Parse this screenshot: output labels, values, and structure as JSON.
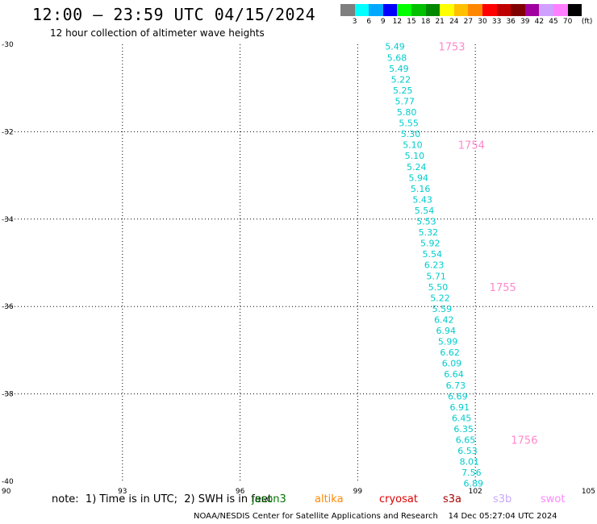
{
  "title": "12:00 — 23:59 UTC 04/15/2024",
  "subtitle": "12 hour collection of altimeter wave heights",
  "colorbar": {
    "unit": "(ft)",
    "labels": [
      "3",
      "6",
      "9",
      "12",
      "15",
      "18",
      "21",
      "24",
      "27",
      "30",
      "33",
      "36",
      "39",
      "42",
      "45",
      "70"
    ],
    "colors": [
      "#7f7f7f",
      "#00ffff",
      "#00a8ff",
      "#0000ff",
      "#00ff00",
      "#00c000",
      "#008800",
      "#ffff00",
      "#ffc000",
      "#ff8800",
      "#ff0000",
      "#c00000",
      "#800000",
      "#a000a0",
      "#d0a0ff",
      "#ff80ff",
      "#000000"
    ]
  },
  "note": "note:  1) Time is in UTC;  2) SWH is in feet",
  "legend": [
    {
      "name": "jason3",
      "color": "#007700"
    },
    {
      "name": "altika",
      "color": "#ff8800"
    },
    {
      "name": "cryosat",
      "color": "#dd0000"
    },
    {
      "name": "s3a",
      "color": "#aa0000"
    },
    {
      "name": "s3b",
      "color": "#c8a8ff"
    },
    {
      "name": "swot",
      "color": "#ff88ff"
    }
  ],
  "footer": "NOAA/NESDIS Center for Satellite Applications and Research    14 Dec 05:27:04 UTC 2024",
  "chart_data": {
    "type": "scatter",
    "title": "12:00 — 23:59 UTC 04/15/2024",
    "xlim": [
      90,
      105
    ],
    "ylim": [
      -40,
      -30
    ],
    "x_ticks": [
      "90",
      "93",
      "96",
      "99",
      "102",
      "105"
    ],
    "y_ticks": [
      "-30",
      "-32",
      "-34",
      "-36",
      "-38",
      "-40"
    ],
    "grid": true,
    "series": [
      {
        "name": "jason3",
        "color": "#00cccc",
        "points": [
          {
            "x": 99.95,
            "y": -30.05,
            "label": "5.49"
          },
          {
            "x": 100.0,
            "y": -30.3,
            "label": "5.68"
          },
          {
            "x": 100.05,
            "y": -30.55,
            "label": "5.49"
          },
          {
            "x": 100.1,
            "y": -30.8,
            "label": "5.22"
          },
          {
            "x": 100.15,
            "y": -31.05,
            "label": "5.25"
          },
          {
            "x": 100.2,
            "y": -31.3,
            "label": "5.77"
          },
          {
            "x": 100.25,
            "y": -31.55,
            "label": "5.80"
          },
          {
            "x": 100.3,
            "y": -31.8,
            "label": "5.55"
          },
          {
            "x": 100.35,
            "y": -32.05,
            "label": "5.30"
          },
          {
            "x": 100.4,
            "y": -32.3,
            "label": "5.10"
          },
          {
            "x": 100.45,
            "y": -32.55,
            "label": "5.10"
          },
          {
            "x": 100.5,
            "y": -32.8,
            "label": "5.24"
          },
          {
            "x": 100.55,
            "y": -33.05,
            "label": "5.94"
          },
          {
            "x": 100.6,
            "y": -33.3,
            "label": "5.16"
          },
          {
            "x": 100.65,
            "y": -33.55,
            "label": "5.43"
          },
          {
            "x": 100.7,
            "y": -33.8,
            "label": "5.54"
          },
          {
            "x": 100.75,
            "y": -34.05,
            "label": "5.53"
          },
          {
            "x": 100.8,
            "y": -34.3,
            "label": "5.32"
          },
          {
            "x": 100.85,
            "y": -34.55,
            "label": "5.92"
          },
          {
            "x": 100.9,
            "y": -34.8,
            "label": "5.54"
          },
          {
            "x": 100.95,
            "y": -35.05,
            "label": "6.23"
          },
          {
            "x": 101.0,
            "y": -35.3,
            "label": "5.71"
          },
          {
            "x": 101.05,
            "y": -35.55,
            "label": "5.50"
          },
          {
            "x": 101.1,
            "y": -35.8,
            "label": "5.22"
          },
          {
            "x": 101.15,
            "y": -36.05,
            "label": "5.59"
          },
          {
            "x": 101.2,
            "y": -36.3,
            "label": "6.42"
          },
          {
            "x": 101.25,
            "y": -36.55,
            "label": "6.94"
          },
          {
            "x": 101.3,
            "y": -36.8,
            "label": "5.99"
          },
          {
            "x": 101.35,
            "y": -37.05,
            "label": "6.62"
          },
          {
            "x": 101.4,
            "y": -37.3,
            "label": "6.09"
          },
          {
            "x": 101.45,
            "y": -37.55,
            "label": "6.64"
          },
          {
            "x": 101.5,
            "y": -37.8,
            "label": "6.73"
          },
          {
            "x": 101.55,
            "y": -38.05,
            "label": "6.69"
          },
          {
            "x": 101.6,
            "y": -38.3,
            "label": "6.91"
          },
          {
            "x": 101.65,
            "y": -38.55,
            "label": "6.45"
          },
          {
            "x": 101.7,
            "y": -38.8,
            "label": "6.35"
          },
          {
            "x": 101.75,
            "y": -39.05,
            "label": "6.65"
          },
          {
            "x": 101.8,
            "y": -39.3,
            "label": "6.53"
          },
          {
            "x": 101.85,
            "y": -39.55,
            "label": "8.01"
          },
          {
            "x": 101.9,
            "y": -39.8,
            "label": "7.56"
          },
          {
            "x": 101.95,
            "y": -40.05,
            "label": "6.89"
          }
        ]
      }
    ],
    "time_labels": [
      {
        "x": 101.4,
        "y": -30.05,
        "label": "1753",
        "color": "#ff88cc"
      },
      {
        "x": 101.9,
        "y": -32.3,
        "label": "1754",
        "color": "#ff88cc"
      },
      {
        "x": 102.7,
        "y": -35.55,
        "label": "1755",
        "color": "#ff88cc"
      },
      {
        "x": 103.25,
        "y": -39.05,
        "label": "1756",
        "color": "#ff88cc"
      }
    ]
  }
}
